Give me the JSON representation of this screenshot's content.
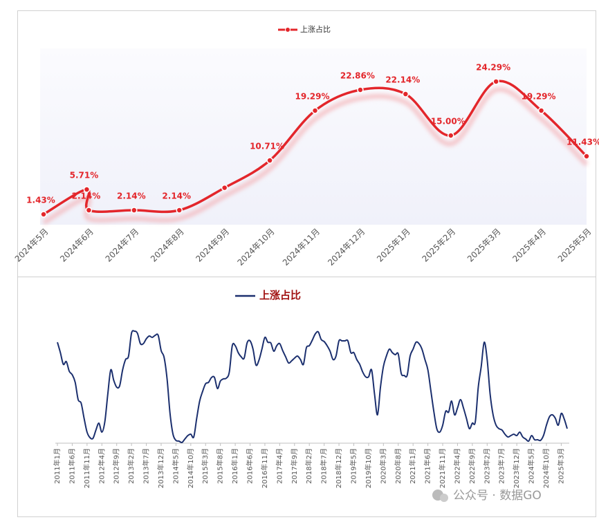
{
  "chart_data": [
    {
      "type": "line",
      "categories": [
        "2024年5月",
        null,
        "2024年6月",
        "2024年7月",
        "2024年8月",
        "2024年9月",
        "2024年10月",
        "2024年11月",
        "2024年12月",
        "2025年1月",
        "2025年2月",
        "2025年3月",
        "2025年4月",
        "2025年5月"
      ],
      "series": [
        {
          "name": "上涨占比",
          "color": "#e3262b",
          "values": [
            1.43,
            5.71,
            2.14,
            2.14,
            2.14,
            6,
            10.71,
            19.29,
            22.86,
            22.14,
            15.0,
            24.29,
            19.29,
            11.43
          ],
          "value_labels": [
            "1.43%",
            "5.71%",
            "2.14%",
            "2.14%",
            "2.14%",
            null,
            "10.71%",
            "19.29%",
            "22.86%",
            "22.14%",
            "15.00%",
            "24.29%",
            "19.29%",
            "11.43%"
          ]
        }
      ],
      "ylim": [
        0,
        30
      ],
      "legend": "top"
    },
    {
      "type": "line",
      "categories": [
        "2011年1月",
        null,
        null,
        null,
        null,
        "2011年6月",
        null,
        null,
        null,
        null,
        "2011年11月",
        null,
        null,
        null,
        null,
        "2012年4月",
        null,
        null,
        null,
        null,
        "2012年9月",
        null,
        null,
        null,
        null,
        "2013年2月",
        null,
        null,
        null,
        null,
        "2013年7月",
        null,
        null,
        null,
        null,
        "2013年12月",
        null,
        null,
        null,
        null,
        "2014年5月",
        null,
        null,
        null,
        null,
        "2014年10月",
        null,
        null,
        null,
        null,
        "2015年3月",
        null,
        null,
        null,
        null,
        "2015年8月",
        null,
        null,
        null,
        null,
        "2016年1月",
        null,
        null,
        null,
        null,
        "2016年6月",
        null,
        null,
        null,
        null,
        "2016年11月",
        null,
        null,
        null,
        null,
        "2017年4月",
        null,
        null,
        null,
        null,
        "2017年9月",
        null,
        null,
        null,
        null,
        "2018年2月",
        null,
        null,
        null,
        null,
        "2018年7月",
        null,
        null,
        null,
        null,
        "2018年12月",
        null,
        null,
        null,
        null,
        "2019年5月",
        null,
        null,
        null,
        null,
        "2019年10月",
        null,
        null,
        null,
        null,
        "2020年3月",
        null,
        null,
        null,
        null,
        "2020年8月",
        null,
        null,
        null,
        null,
        "2021年1月",
        null,
        null,
        null,
        null,
        "2021年6月",
        null,
        null,
        null,
        null,
        "2021年11月",
        null,
        null,
        null,
        null,
        "2022年4月",
        null,
        null,
        null,
        null,
        "2022年9月",
        null,
        null,
        null,
        null,
        "2023年2月",
        null,
        null,
        null,
        null,
        "2023年7月",
        null,
        null,
        null,
        null,
        "2023年12月",
        null,
        null,
        null,
        null,
        "2024年5月",
        null,
        null,
        null,
        null,
        "2024年10月",
        null,
        null,
        null,
        null,
        "2025年3月",
        null,
        null
      ],
      "series": [
        {
          "name": "上涨占比",
          "color": "#1b2f6e",
          "values": [
            145,
            130,
            113,
            117,
            103,
            98,
            87,
            62,
            57,
            35,
            15,
            7,
            6,
            18,
            28,
            15,
            30,
            70,
            105,
            90,
            80,
            82,
            105,
            120,
            125,
            158,
            161,
            158,
            143,
            143,
            150,
            154,
            152,
            155,
            155,
            133,
            123,
            92,
            42,
            12,
            3,
            2,
            0,
            5,
            10,
            12,
            8,
            35,
            60,
            74,
            85,
            87,
            94,
            94,
            78,
            89,
            92,
            93,
            102,
            140,
            140,
            130,
            124,
            122,
            144,
            147,
            135,
            112,
            119,
            135,
            152,
            145,
            144,
            132,
            140,
            143,
            133,
            124,
            115,
            118,
            122,
            125,
            120,
            113,
            137,
            140,
            148,
            157,
            160,
            149,
            146,
            140,
            132,
            120,
            125,
            147,
            147,
            147,
            147,
            130,
            130,
            120,
            113,
            102,
            95,
            95,
            105,
            70,
            40,
            80,
            110,
            125,
            135,
            130,
            127,
            128,
            100,
            97,
            97,
            125,
            135,
            145,
            143,
            135,
            120,
            105,
            75,
            45,
            20,
            15,
            25,
            45,
            44,
            60,
            40,
            50,
            62,
            50,
            35,
            20,
            28,
            30,
            80,
            110,
            145,
            120,
            70,
            40,
            25,
            20,
            18,
            12,
            8,
            10,
            12,
            10,
            15,
            8,
            5,
            2,
            10,
            4,
            4,
            3,
            10,
            25,
            37,
            40,
            35,
            25,
            42,
            34,
            20
          ]
        }
      ],
      "ylim": [
        0,
        165
      ],
      "legend": "top-left"
    }
  ],
  "watermark": "公众号 · 数据GO"
}
